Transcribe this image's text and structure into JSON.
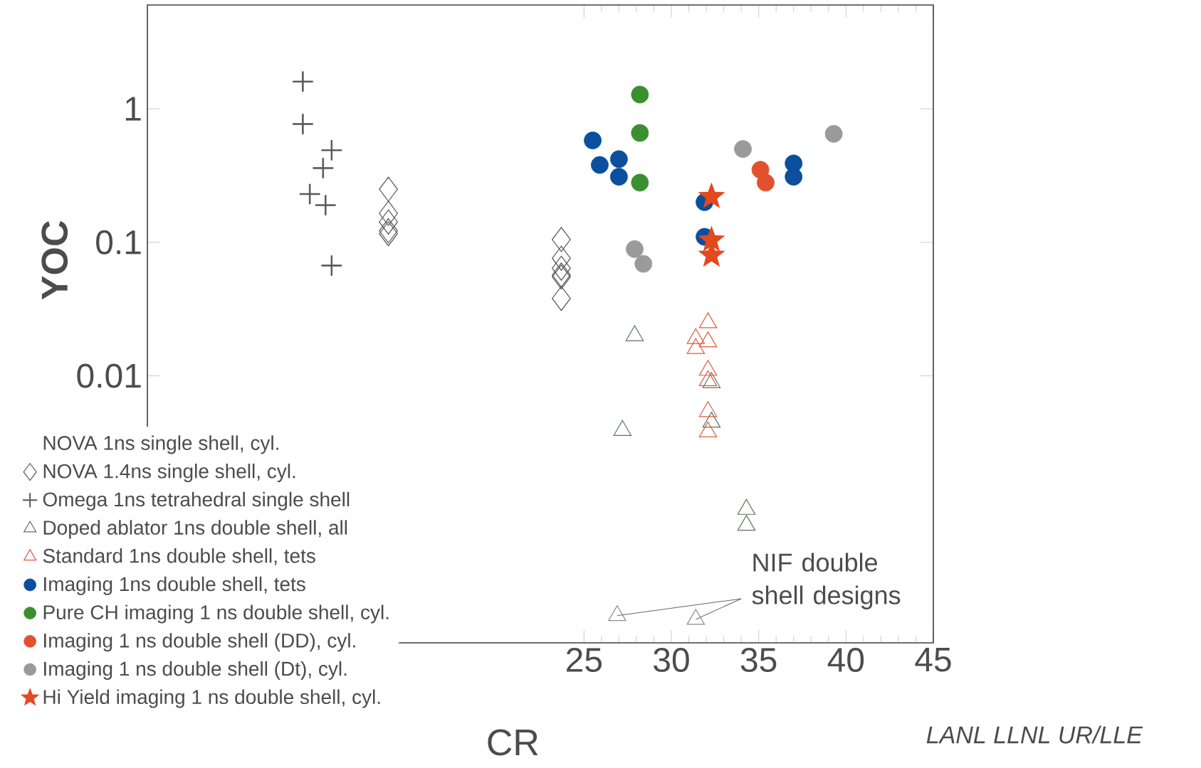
{
  "chart_data": {
    "type": "scatter",
    "xlabel": "CR",
    "ylabel": "YOC",
    "log": "y",
    "xlim": [
      0,
      45
    ],
    "ylim": [
      0.0001,
      6
    ],
    "xticks": [
      25,
      30,
      35,
      40,
      45
    ],
    "yticks": [
      1,
      0.1,
      0.01
    ],
    "legend": "bottom left",
    "annotations": [
      "NOVA 1ns single shell, cyl.",
      {
        "text": "NIF double shell designs",
        "x": 26.9,
        "y": 0.00016
      },
      "*LANL   LLNL   UR/LLE*"
    ],
    "series": [
      {
        "name": "NOVA 1.4ns single shell, cyl.",
        "marker": "diamond",
        "color": "#555555",
        "x": [
          13.8,
          13.8,
          13.8,
          13.8,
          13.8,
          23.7,
          23.7,
          23.7,
          23.7,
          23.7,
          23.7
        ],
        "values": [
          0.25,
          0.165,
          0.142,
          0.122,
          0.116,
          0.105,
          0.076,
          0.064,
          0.057,
          0.055,
          0.038
        ]
      },
      {
        "name": "Omega 1ns tetrahedral single shell",
        "marker": "cross",
        "color": "#555555",
        "x": [
          8.9,
          8.9,
          10.55,
          10.06,
          9.3,
          10.2,
          10.55
        ],
        "values": [
          1.6,
          0.77,
          0.49,
          0.36,
          0.23,
          0.19,
          0.067
        ]
      },
      {
        "name": "Doped ablator 1ns double shell, all",
        "marker": "triangle",
        "color": "#5f7060",
        "x": [
          27.9,
          27.2,
          34.3,
          34.3,
          32.3,
          32.3
        ],
        "values": [
          0.02,
          0.0039,
          0.001,
          0.00076,
          0.0089,
          0.0045
        ]
      },
      {
        "name": "Standard 1ns double shell, tets",
        "marker": "triangle",
        "color": "#e05a40",
        "x": [
          32.1,
          31.4,
          32.1,
          31.4,
          32.1,
          32.1,
          32.1,
          32.1
        ],
        "values": [
          0.025,
          0.019,
          0.018,
          0.016,
          0.011,
          0.0092,
          0.0054,
          0.0038
        ]
      },
      {
        "name": "Imaging 1ns double shell, tets",
        "marker": "circle",
        "color": "#0b4f9e",
        "x": [
          25.5,
          25.9,
          27.0,
          27.0,
          31.9,
          31.9,
          37.0,
          37.0
        ],
        "values": [
          0.58,
          0.38,
          0.42,
          0.31,
          0.2,
          0.11,
          0.39,
          0.31
        ]
      },
      {
        "name": "Pure CH imaging 1 ns double shell, cyl.",
        "marker": "circle",
        "color": "#3a8f2e",
        "x": [
          28.2,
          28.2,
          28.2
        ],
        "values": [
          1.28,
          0.66,
          0.28
        ]
      },
      {
        "name": "Imaging 1 ns double shell (DD), cyl.",
        "marker": "circle",
        "color": "#e2502f",
        "x": [
          35.1,
          35.4
        ],
        "values": [
          0.35,
          0.28
        ]
      },
      {
        "name": "Imaging 1 ns double shell (Dt), cyl.",
        "marker": "circle",
        "color": "#9a9a9a",
        "x": [
          34.1,
          39.3,
          27.9,
          28.4
        ],
        "values": [
          0.5,
          0.65,
          0.089,
          0.069
        ]
      },
      {
        "name": "Hi Yield imaging 1 ns double shell, cyl.",
        "marker": "star",
        "color": "#e04a1e",
        "x": [
          32.3,
          32.3,
          32.3
        ],
        "values": [
          0.22,
          0.104,
          0.08
        ]
      },
      {
        "marker": "triangle",
        "color": "#8a8a8a",
        "x": [
          26.9,
          31.4
        ],
        "values": [
          0.00016,
          0.00015
        ]
      }
    ]
  }
}
